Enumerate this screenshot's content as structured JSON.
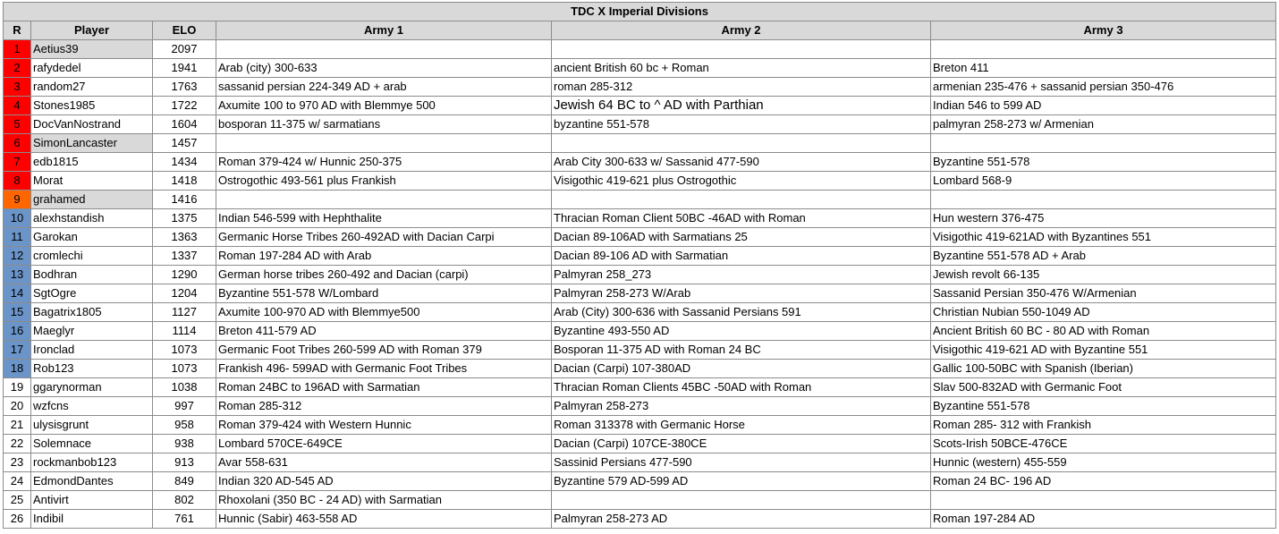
{
  "title": "TDC X Imperial Divisions",
  "headers": {
    "rank": "R",
    "player": "Player",
    "elo": "ELO",
    "army1": "Army 1",
    "army2": "Army 2",
    "army3": "Army 3"
  },
  "colors": {
    "red": "#ff0000",
    "orange": "#ff6600",
    "blue": "#6b94c9",
    "header_grey": "#d9d9d9"
  },
  "rows": [
    {
      "r": "1",
      "player": "Aetius39",
      "elo": "2097",
      "army1": "",
      "army2": "",
      "army3": "",
      "rank_color": "red",
      "grey": true
    },
    {
      "r": "2",
      "player": "rafydedel",
      "elo": "1941",
      "army1": "Arab (city) 300-633",
      "army2": "ancient British 60 bc + Roman",
      "army3": "Breton 411",
      "rank_color": "red",
      "grey": false
    },
    {
      "r": "3",
      "player": "random27",
      "elo": "1763",
      "army1": "sassanid persian 224-349 AD + arab",
      "army2": "roman 285-312",
      "army3": "armenian 235-476 + sassanid persian 350-476",
      "rank_color": "red",
      "grey": false
    },
    {
      "r": "4",
      "player": "Stones1985",
      "elo": "1722",
      "army1": "Axumite 100 to 970 AD with Blemmye 500",
      "army2": "Jewish 64 BC to ^ AD with Parthian",
      "army3": "Indian 546 to 599 AD",
      "rank_color": "red",
      "grey": false
    },
    {
      "r": "5",
      "player": "DocVanNostrand",
      "elo": "1604",
      "army1": "bosporan 11-375 w/ sarmatians",
      "army2": "byzantine 551-578",
      "army3": "palmyran 258-273 w/ Armenian",
      "rank_color": "red",
      "grey": false
    },
    {
      "r": "6",
      "player": "SimonLancaster",
      "elo": "1457",
      "army1": "",
      "army2": "",
      "army3": "",
      "rank_color": "red",
      "grey": true
    },
    {
      "r": "7",
      "player": "edb1815",
      "elo": "1434",
      "army1": "Roman 379-424 w/ Hunnic 250-375",
      "army2": "Arab City 300-633 w/ Sassanid 477-590",
      "army3": "Byzantine 551-578",
      "rank_color": "red",
      "grey": false
    },
    {
      "r": "8",
      "player": "Morat",
      "elo": "1418",
      "army1": "Ostrogothic 493-561 plus Frankish",
      "army2": "Visigothic 419-621 plus Ostrogothic",
      "army3": "Lombard 568-9",
      "rank_color": "red",
      "grey": false
    },
    {
      "r": "9",
      "player": "grahamed",
      "elo": "1416",
      "army1": "",
      "army2": "",
      "army3": "",
      "rank_color": "orange",
      "grey": true
    },
    {
      "r": "10",
      "player": "alexhstandish",
      "elo": "1375",
      "army1": "Indian 546-599 with Hephthalite",
      "army2": "Thracian Roman Client 50BC -46AD with Roman",
      "army3": "Hun western 376-475",
      "rank_color": "blue",
      "grey": false
    },
    {
      "r": "11",
      "player": "Garokan",
      "elo": "1363",
      "army1": "Germanic Horse Tribes 260-492AD with Dacian Carpi",
      "army2": "Dacian 89-106AD with Sarmatians 25",
      "army3": "Visigothic 419-621AD with Byzantines 551",
      "rank_color": "blue",
      "grey": false
    },
    {
      "r": "12",
      "player": "cromlechi",
      "elo": "1337",
      "army1": "Roman 197-284 AD with Arab",
      "army2": "Dacian 89-106 AD with Sarmatian",
      "army3": "Byzantine 551-578 AD + Arab",
      "rank_color": "blue",
      "grey": false
    },
    {
      "r": "13",
      "player": "Bodhran",
      "elo": "1290",
      "army1": "German horse tribes 260-492 and Dacian (carpi)",
      "army2": "Palmyran 258_273",
      "army3": "Jewish revolt 66-135",
      "rank_color": "blue",
      "grey": false
    },
    {
      "r": "14",
      "player": "SgtOgre",
      "elo": "1204",
      "army1": "Byzantine 551-578 W/Lombard",
      "army2": "Palmyran 258-273 W/Arab",
      "army3": "Sassanid Persian 350-476 W/Armenian",
      "rank_color": "blue",
      "grey": false
    },
    {
      "r": "15",
      "player": "Bagatrix1805",
      "elo": "1127",
      "army1": "Axumite 100-970 AD with Blemmye500",
      "army2": "Arab (City) 300-636 with Sassanid Persians 591",
      "army3": "Christian Nubian 550-1049 AD",
      "rank_color": "blue",
      "grey": false
    },
    {
      "r": "16",
      "player": "Maeglyr",
      "elo": "1114",
      "army1": "Breton 411-579 AD",
      "army2": "Byzantine 493-550 AD",
      "army3": "Ancient British 60 BC - 80 AD with Roman",
      "rank_color": "blue",
      "grey": false
    },
    {
      "r": "17",
      "player": "Ironclad",
      "elo": "1073",
      "army1": "Germanic Foot Tribes 260-599 AD with Roman 379",
      "army2": "Bosporan 11-375 AD with Roman 24 BC",
      "army3": "Visigothic 419-621 AD with Byzantine 551",
      "rank_color": "blue",
      "grey": false
    },
    {
      "r": "18",
      "player": "Rob123",
      "elo": "1073",
      "army1": "Frankish 496- 599AD with Germanic Foot Tribes",
      "army2": "Dacian (Carpi) 107-380AD",
      "army3": "Gallic 100-50BC with Spanish (Iberian)",
      "rank_color": "blue",
      "grey": false
    },
    {
      "r": "19",
      "player": "ggarynorman",
      "elo": "1038",
      "army1": "Roman 24BC to 196AD with Sarmatian",
      "army2": "Thracian Roman Clients 45BC -50AD with Roman",
      "army3": "Slav 500-832AD with Germanic Foot",
      "rank_color": "none",
      "grey": false
    },
    {
      "r": "20",
      "player": "wzfcns",
      "elo": "997",
      "army1": "Roman 285-312",
      "army2": "Palmyran 258-273",
      "army3": "Byzantine 551-578",
      "rank_color": "none",
      "grey": false
    },
    {
      "r": "21",
      "player": "ulysisgrunt",
      "elo": "958",
      "army1": "Roman 379-424 with Western Hunnic",
      "army2": "Roman 313378 with Germanic Horse",
      "army3": "Roman 285- 312 with Frankish",
      "rank_color": "none",
      "grey": false
    },
    {
      "r": "22",
      "player": "Solemnace",
      "elo": "938",
      "army1": "Lombard 570CE-649CE",
      "army2": "Dacian (Carpi) 107CE-380CE",
      "army3": "Scots-Irish 50BCE-476CE",
      "rank_color": "none",
      "grey": false
    },
    {
      "r": "23",
      "player": "rockmanbob123",
      "elo": "913",
      "army1": "Avar 558-631",
      "army2": "Sassinid Persians 477-590",
      "army3": "Hunnic (western) 455-559",
      "rank_color": "none",
      "grey": false
    },
    {
      "r": "24",
      "player": "EdmondDantes",
      "elo": "849",
      "army1": "Indian 320 AD-545 AD",
      "army2": "Byzantine 579 AD-599 AD",
      "army3": "Roman 24 BC- 196 AD",
      "rank_color": "none",
      "grey": false
    },
    {
      "r": "25",
      "player": "Antivirt",
      "elo": "802",
      "army1": "Rhoxolani (350 BC - 24 AD) with Sarmatian",
      "army2": "",
      "army3": "",
      "rank_color": "none",
      "grey": false
    },
    {
      "r": "26",
      "player": "Indibil",
      "elo": "761",
      "army1": "Hunnic (Sabir) 463-558 AD",
      "army2": "Palmyran 258-273 AD",
      "army3": "Roman 197-284 AD",
      "rank_color": "none",
      "grey": false
    }
  ]
}
